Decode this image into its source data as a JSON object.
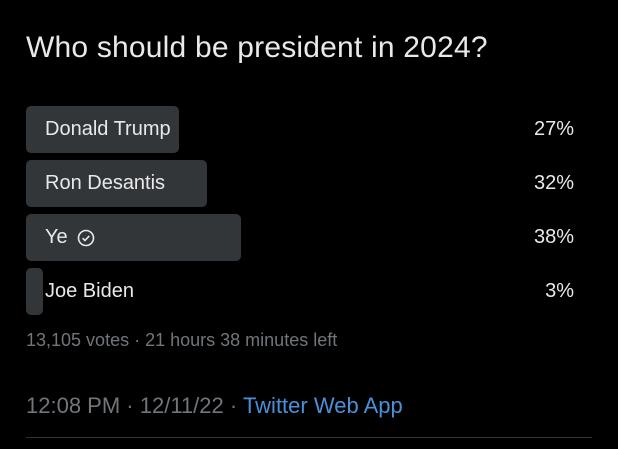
{
  "poll": {
    "question": "Who should be president in 2024?",
    "options": [
      {
        "label": "Donald Trump",
        "percent": 27,
        "percent_label": "27%",
        "selected": false
      },
      {
        "label": "Ron Desantis",
        "percent": 32,
        "percent_label": "32%",
        "selected": false
      },
      {
        "label": "Ye",
        "percent": 38,
        "percent_label": "38%",
        "selected": true,
        "icon": "check-circle-icon"
      },
      {
        "label": "Joe Biden",
        "percent": 3,
        "percent_label": "3%",
        "selected": false
      }
    ],
    "votes": "13,105 votes",
    "separator": "·",
    "time_left": "21 hours 38 minutes left"
  },
  "tweet": {
    "time": "12:08 PM",
    "date": "12/11/22",
    "source": "Twitter Web App"
  },
  "colors": {
    "background": "#000000",
    "bar": "#333639",
    "link": "#4a90d9",
    "muted": "#71767b"
  }
}
